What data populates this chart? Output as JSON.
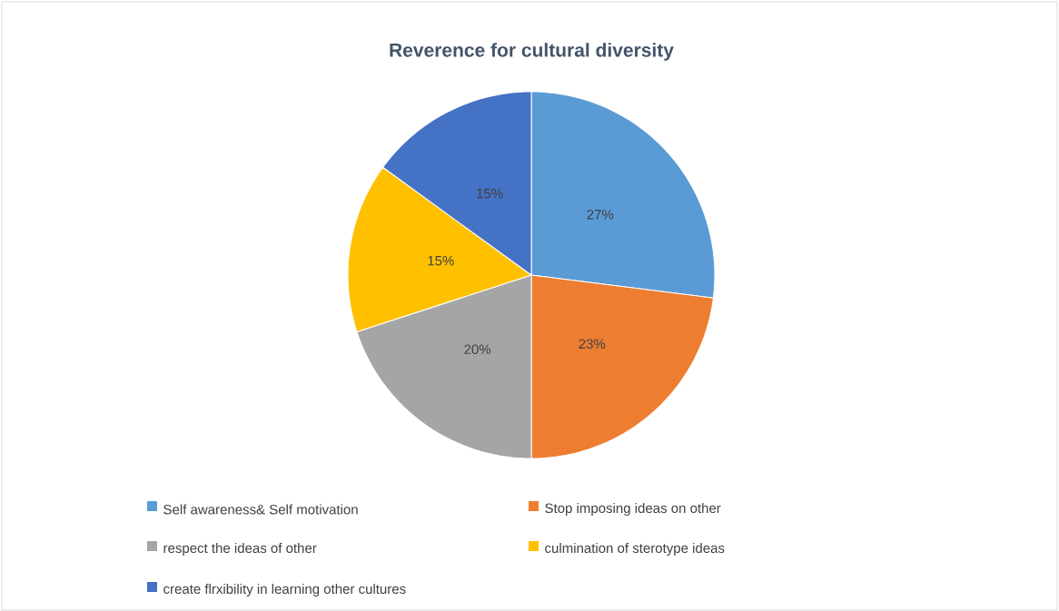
{
  "chart_data": {
    "type": "pie",
    "title": "Reverence for cultural diversity",
    "categories": [
      "Self awareness& Self motivation",
      "Stop imposing ideas on other",
      "respect the ideas of other",
      "culmination of sterotype ideas",
      "create flrxibility in learning other cultures"
    ],
    "values": [
      27,
      23,
      20,
      15,
      15
    ],
    "value_labels": [
      "27%",
      "23%",
      "20%",
      "15%",
      "15%"
    ],
    "colors": [
      "#5b9bd5",
      "#ed7d31",
      "#a5a5a5",
      "#ffc000",
      "#4472c4"
    ],
    "legend": "bottom"
  }
}
